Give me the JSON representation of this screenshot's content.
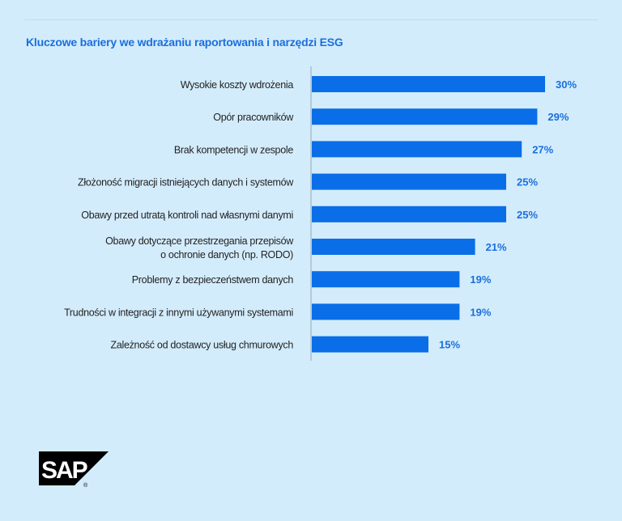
{
  "chart_data": {
    "type": "bar",
    "orientation": "horizontal",
    "title": "Kluczowe bariery we wdrażaniu raportowania i narzędzi ESG",
    "categories": [
      "Wysokie koszty wdrożenia",
      "Opór pracowników",
      "Brak kompetencji w zespole",
      "Złożoność migracji istniejących danych i systemów",
      "Obawy przed utratą kontroli nad własnymi danymi",
      "Obawy dotyczące przestrzegania przepisów\no ochronie danych (np. RODO)",
      "Problemy z bezpieczeństwem danych",
      "Trudności w integracji z innymi używanymi systemami",
      "Zależność od dostawcy usług chmurowych"
    ],
    "values": [
      30,
      29,
      27,
      25,
      25,
      21,
      19,
      19,
      15
    ],
    "value_labels": [
      "30%",
      "29%",
      "27%",
      "25%",
      "25%",
      "21%",
      "19%",
      "19%",
      "15%"
    ],
    "unit": "%",
    "xlim": [
      0,
      30
    ],
    "grid": false,
    "legend": "none",
    "colors": {
      "bar": "#0a6ee8",
      "value_label": "#1a6fdc",
      "title": "#1a6fdc",
      "background": "#d3ecfc"
    }
  },
  "logo": {
    "text": "SAP",
    "registered": "®"
  }
}
